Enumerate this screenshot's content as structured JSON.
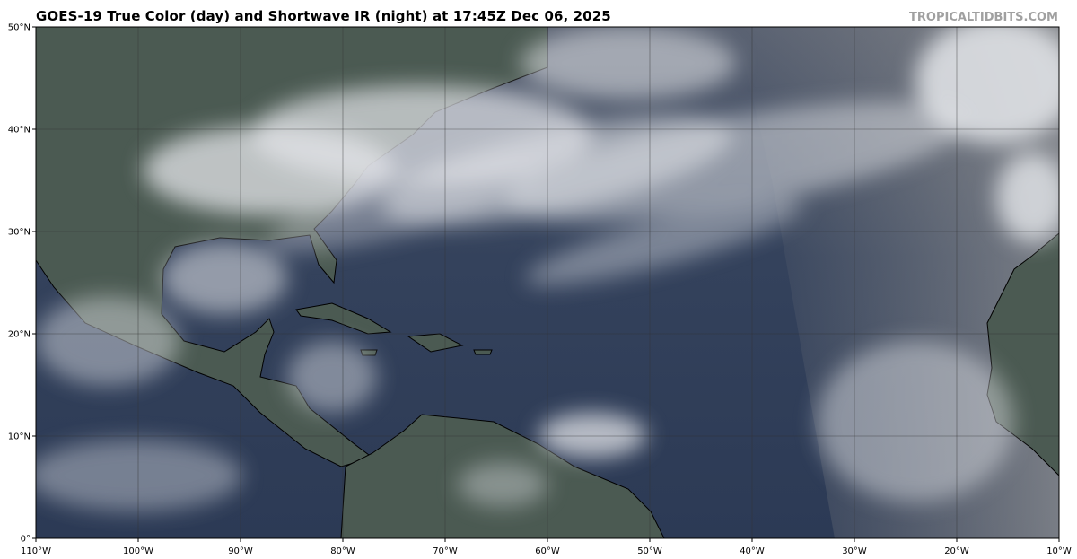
{
  "title": "GOES-19 True Color (day) and Shortwave IR (night) at 17:45Z Dec 06, 2025",
  "watermark": "TROPICALTIDBITS.COM",
  "map": {
    "lon_range": [
      -110,
      -10
    ],
    "lat_range": [
      0,
      50
    ],
    "x_ticks": [
      {
        "value": -110,
        "label": "110°W"
      },
      {
        "value": -100,
        "label": "100°W"
      },
      {
        "value": -90,
        "label": "90°W"
      },
      {
        "value": -80,
        "label": "80°W"
      },
      {
        "value": -70,
        "label": "70°W"
      },
      {
        "value": -60,
        "label": "60°W"
      },
      {
        "value": -50,
        "label": "50°W"
      },
      {
        "value": -40,
        "label": "40°W"
      },
      {
        "value": -30,
        "label": "30°W"
      },
      {
        "value": -20,
        "label": "20°W"
      },
      {
        "value": -10,
        "label": "10°W"
      }
    ],
    "y_ticks": [
      {
        "value": 0,
        "label": "0°"
      },
      {
        "value": 10,
        "label": "10°N"
      },
      {
        "value": 20,
        "label": "20°N"
      },
      {
        "value": 30,
        "label": "30°N"
      },
      {
        "value": 40,
        "label": "40°N"
      },
      {
        "value": 50,
        "label": "50°N"
      }
    ],
    "gridlines": true,
    "colors": {
      "ocean": "#2e3b55",
      "land": "#4a5a50",
      "cloud": "#e6e8ec",
      "grid": "#333333",
      "coast": "#000000"
    }
  }
}
